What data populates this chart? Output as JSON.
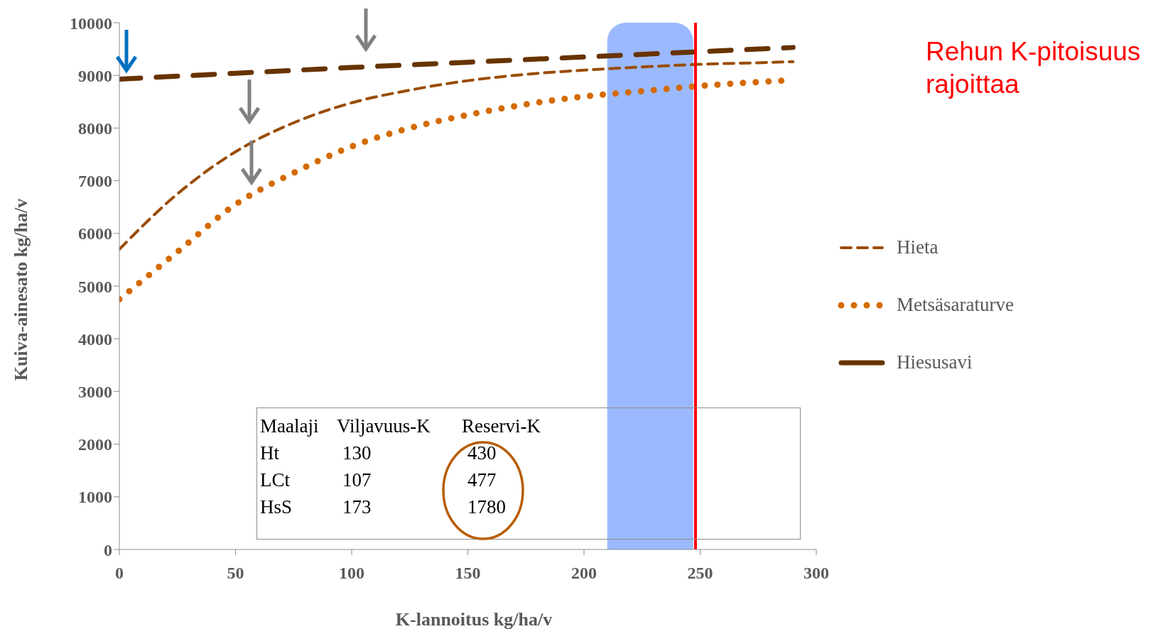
{
  "chart_data": {
    "type": "line",
    "xlabel": "K-lannoitus kg/ha/v",
    "ylabel": "Kuiva-ainesato kg/ha/v",
    "xlim": [
      0,
      300
    ],
    "xticks": [
      0,
      50,
      100,
      150,
      200,
      250,
      300
    ],
    "ylim": [
      0,
      10000
    ],
    "yticks": [
      0,
      1000,
      2000,
      3000,
      4000,
      5000,
      6000,
      7000,
      8000,
      9000,
      10000
    ],
    "grid": false,
    "legend": "right",
    "marker": "none",
    "series": [
      {
        "name": "Hieta",
        "color": "#994c00",
        "line_style": "dashed",
        "x": [
          0,
          25,
          50,
          75,
          100,
          125,
          150,
          175,
          200,
          225,
          250,
          275,
          290
        ],
        "values": [
          5700,
          6750,
          7550,
          8100,
          8480,
          8720,
          8900,
          9020,
          9100,
          9160,
          9210,
          9240,
          9260
        ]
      },
      {
        "name": "Metsäsaraturve",
        "color": "#d46a00",
        "line_style": "dotted",
        "x": [
          0,
          25,
          50,
          75,
          100,
          125,
          150,
          175,
          200,
          225,
          250,
          285
        ],
        "values": [
          4750,
          5650,
          6550,
          7150,
          7650,
          8000,
          8250,
          8450,
          8600,
          8700,
          8800,
          8900
        ]
      },
      {
        "name": "Hiesusavi",
        "color": "#663300",
        "line_style": "dashed",
        "x": [
          0,
          50,
          100,
          150,
          200,
          250,
          290
        ],
        "values": [
          8930,
          9040,
          9150,
          9250,
          9350,
          9450,
          9530
        ]
      }
    ],
    "bands": [
      {
        "axis": "x",
        "from": 210,
        "to": 247,
        "color": "#7aa2ff"
      }
    ],
    "ref_lines": [
      {
        "axis": "x",
        "value": 248,
        "label": "Rehun K-pitoisuus rajoittaa",
        "color": "#ff0000"
      }
    ],
    "annotations": [
      "Maalaji Viljavuus-K Reservi-K",
      "Ht 130 430",
      "LCt 107 477",
      "HsS 173 1780"
    ]
  }
}
